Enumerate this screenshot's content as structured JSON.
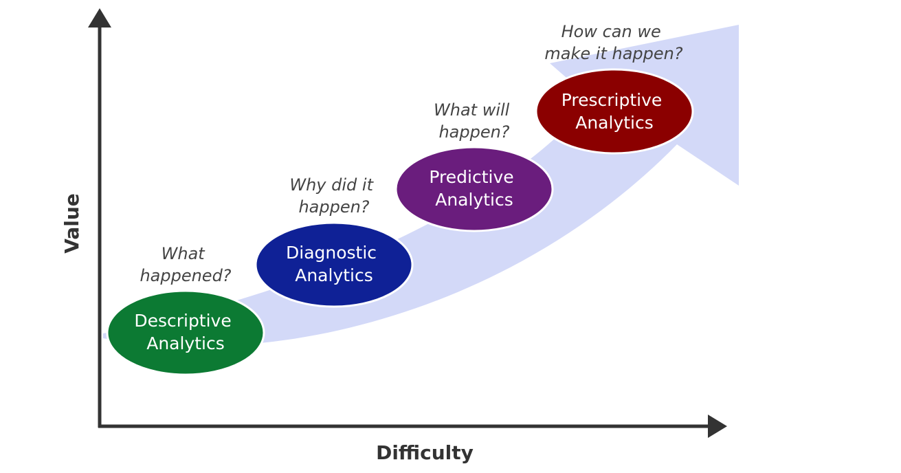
{
  "axes": {
    "x_label": "Difficulty",
    "y_label": "Value"
  },
  "stages": [
    {
      "id": "descriptive",
      "label_line1": "Descriptive",
      "label_line2": "Analytics",
      "question_line1": "What",
      "question_line2": "happened?",
      "color": "#0c7a33"
    },
    {
      "id": "diagnostic",
      "label_line1": "Diagnostic",
      "label_line2": "Analytics",
      "question_line1": "Why did it",
      "question_line2": "happen?",
      "color": "#0f2196"
    },
    {
      "id": "predictive",
      "label_line1": "Predictive",
      "label_line2": "Analytics",
      "question_line1": "What will",
      "question_line2": "happen?",
      "color": "#6a1d7d"
    },
    {
      "id": "prescriptive",
      "label_line1": "Prescriptive",
      "label_line2": "Analytics",
      "question_line1": "How can we",
      "question_line2": "make it happen?",
      "color": "#8b0000"
    }
  ],
  "colors": {
    "axis": "#333333",
    "progress_arrow": "#d3d9f8"
  }
}
